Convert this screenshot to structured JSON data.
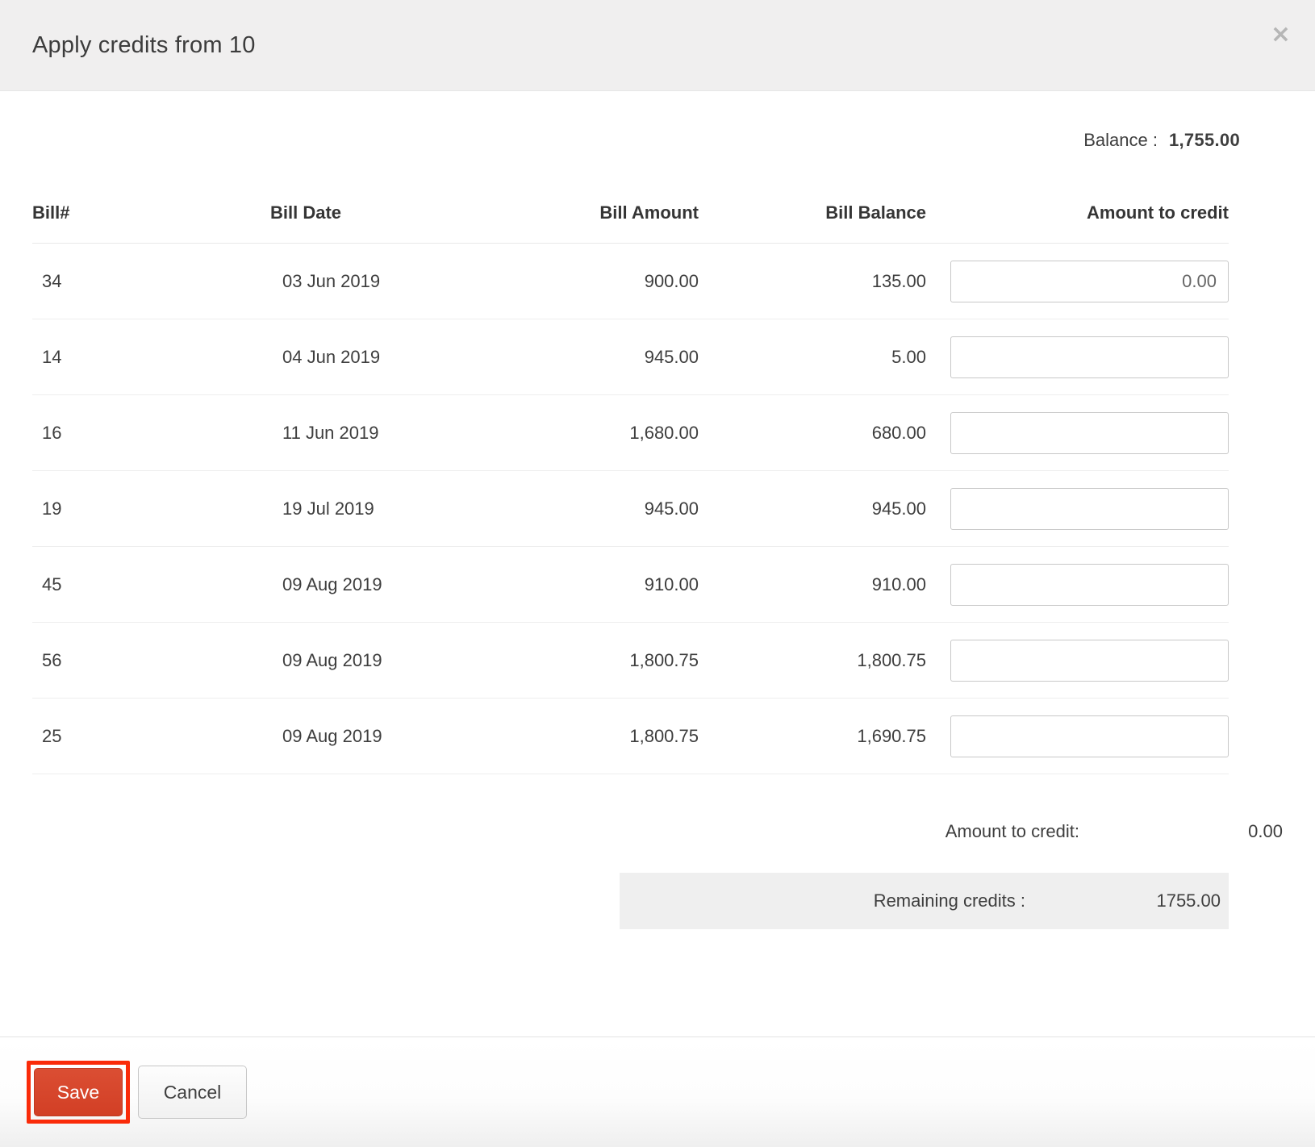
{
  "modal": {
    "title": "Apply credits from 10",
    "close_icon": "×"
  },
  "balance": {
    "label": "Balance :",
    "value": "1,755.00"
  },
  "table": {
    "columns": [
      "Bill#",
      "Bill Date",
      "Bill Amount",
      "Bill Balance",
      "Amount to credit"
    ],
    "rows": [
      {
        "bill_no": "34",
        "bill_date": "03 Jun 2019",
        "bill_amount": "900.00",
        "bill_balance": "135.00",
        "amount_to_credit": "0.00"
      },
      {
        "bill_no": "14",
        "bill_date": "04 Jun 2019",
        "bill_amount": "945.00",
        "bill_balance": "5.00",
        "amount_to_credit": ""
      },
      {
        "bill_no": "16",
        "bill_date": "11 Jun 2019",
        "bill_amount": "1,680.00",
        "bill_balance": "680.00",
        "amount_to_credit": ""
      },
      {
        "bill_no": "19",
        "bill_date": "19 Jul 2019",
        "bill_amount": "945.00",
        "bill_balance": "945.00",
        "amount_to_credit": ""
      },
      {
        "bill_no": "45",
        "bill_date": "09 Aug 2019",
        "bill_amount": "910.00",
        "bill_balance": "910.00",
        "amount_to_credit": ""
      },
      {
        "bill_no": "56",
        "bill_date": "09 Aug 2019",
        "bill_amount": "1,800.75",
        "bill_balance": "1,800.75",
        "amount_to_credit": ""
      },
      {
        "bill_no": "25",
        "bill_date": "09 Aug 2019",
        "bill_amount": "1,800.75",
        "bill_balance": "1,690.75",
        "amount_to_credit": ""
      }
    ]
  },
  "summary": {
    "amount_to_credit_label": "Amount to credit:",
    "amount_to_credit_value": "0.00",
    "remaining_credits_label": "Remaining credits :",
    "remaining_credits_value": "1755.00"
  },
  "footer": {
    "save_label": "Save",
    "cancel_label": "Cancel"
  },
  "colors": {
    "accent": "#d24025",
    "annotation_highlight": "#fa2b09",
    "header_bg": "#f0efef",
    "remaining_bar_bg": "#efefef"
  }
}
